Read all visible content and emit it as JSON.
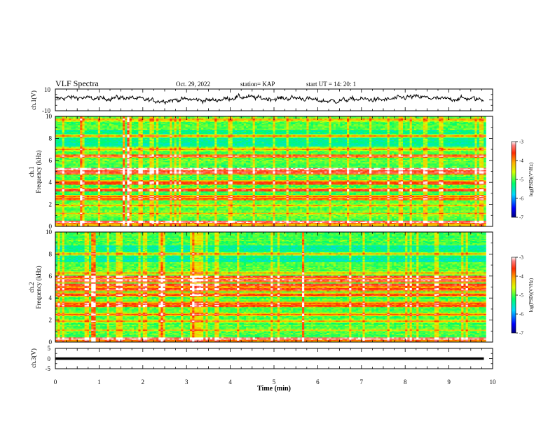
{
  "header": {
    "title": "VLF Spectra",
    "date": "Oct. 29, 2022",
    "station": "station= KAP",
    "start": "start  UT =   14: 20: 1"
  },
  "chart_data": [
    {
      "type": "line",
      "panel": "ch1-waveform",
      "ylabel": "ch.1(V)",
      "ylim": [
        -10,
        10
      ],
      "y_ticks": [
        "10",
        "-10"
      ],
      "xlim": [
        0,
        10
      ],
      "data_end_min": 9.8,
      "trace": "noise waveform, roughly -4 V to +6 V"
    },
    {
      "type": "heatmap",
      "panel": "ch1-spectrogram",
      "ylabel_channel": "ch.1",
      "ylabel": "Frequency (kHz)",
      "ylim": [
        0,
        10
      ],
      "y_ticks": [
        "0",
        "2",
        "4",
        "6",
        "8",
        "10"
      ],
      "xlim": [
        0,
        10
      ],
      "data_end_min": 9.8,
      "bands_khz": [
        {
          "f": 0.4,
          "level": -3.2
        },
        {
          "f": 1.2,
          "level": -4.3
        },
        {
          "f": 1.9,
          "level": -4.1
        },
        {
          "f": 2.5,
          "level": -3.6
        },
        {
          "f": 2.7,
          "level": -3.8
        },
        {
          "f": 3.3,
          "level": -3.5
        },
        {
          "f": 3.9,
          "level": -3.8
        },
        {
          "f": 4.0,
          "level": -3.6
        },
        {
          "f": 4.9,
          "level": -3.3
        },
        {
          "f": 5.2,
          "level": -3.2
        },
        {
          "f": 6.4,
          "level": -3.4
        },
        {
          "f": 7.0,
          "level": -4.0
        },
        {
          "f": 8.2,
          "level": -4.0
        },
        {
          "f": 9.7,
          "level": -4.2
        }
      ],
      "colorbar": {
        "min": -7,
        "max": -3,
        "ticks": [
          "-3",
          "-4",
          "-5",
          "-6",
          "-7"
        ],
        "label": "log(PSD)(V²/Hz)"
      }
    },
    {
      "type": "heatmap",
      "panel": "ch2-spectrogram",
      "ylabel_channel": "ch.2",
      "ylabel": "Frequency (kHz)",
      "ylim": [
        0,
        10
      ],
      "y_ticks": [
        "0",
        "2",
        "4",
        "6",
        "8",
        "10"
      ],
      "xlim": [
        0,
        10
      ],
      "data_end_min": 9.8,
      "bands_khz": [
        {
          "f": 0.3,
          "level": -3.2
        },
        {
          "f": 1.1,
          "level": -4.2
        },
        {
          "f": 1.9,
          "level": -4.1
        },
        {
          "f": 2.5,
          "level": -3.8
        },
        {
          "f": 3.3,
          "level": -3.6
        },
        {
          "f": 3.5,
          "level": -3.8
        },
        {
          "f": 4.3,
          "level": -3.7
        },
        {
          "f": 4.8,
          "level": -3.5
        },
        {
          "f": 5.2,
          "level": -3.4
        },
        {
          "f": 5.6,
          "level": -3.3
        },
        {
          "f": 5.9,
          "level": -3.5
        },
        {
          "f": 6.3,
          "level": -4.1
        },
        {
          "f": 8.0,
          "level": -4.0
        }
      ],
      "colorbar": {
        "min": -7,
        "max": -3,
        "ticks": [
          "-3",
          "-4",
          "-5",
          "-6",
          "-7"
        ],
        "label": "log(PSD)(V²/Hz)"
      }
    },
    {
      "type": "line",
      "panel": "ch3-waveform",
      "ylabel": "ch.3(V)",
      "ylim": [
        -5,
        5
      ],
      "y_ticks": [
        "5",
        "0",
        "-5"
      ],
      "xlim": [
        0,
        10
      ],
      "data_end_min": 9.8,
      "trace": "constant level near 0 V, drawn as a thick flat band"
    }
  ],
  "x_axis": {
    "label": "Time  (min)",
    "ticks": [
      "0",
      "1",
      "2",
      "3",
      "4",
      "5",
      "6",
      "7",
      "8",
      "9",
      "10"
    ]
  },
  "colors": {
    "background": "#ffffff",
    "axis": "#000000",
    "colormap": [
      "#00007f",
      "#0000ff",
      "#00d8ff",
      "#00ff66",
      "#d8ff00",
      "#ffb000",
      "#ff2a00",
      "#ff0000",
      "#ffffff"
    ]
  }
}
